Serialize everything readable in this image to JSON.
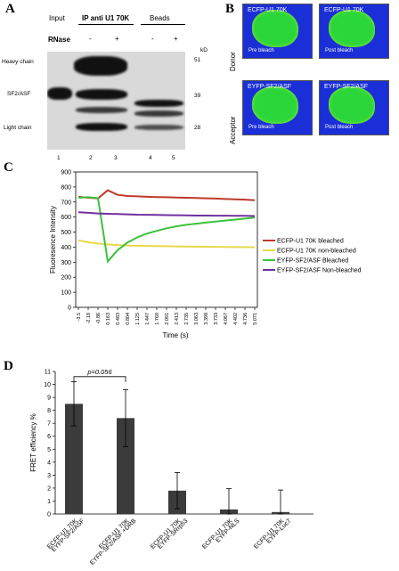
{
  "panelA": {
    "letter": "A",
    "col_input": "Input",
    "col_ip": "IP anti U1 70K",
    "col_beads": "Beads",
    "rnase_label": "RNase",
    "rnase_marks": [
      "-",
      "+",
      "-",
      "+"
    ],
    "kd_label": "kD",
    "markers": [
      "51",
      "39",
      "28"
    ],
    "row_labels": [
      "Heavy chain",
      "SF2/ASF",
      "Light chain"
    ],
    "lanes": [
      "1",
      "2",
      "3",
      "4",
      "5"
    ]
  },
  "panelB": {
    "letter": "B",
    "row_donor": "Donor",
    "row_acceptor": "Acceptor",
    "tiles": [
      {
        "title": "ECFP-U1 70K",
        "sub": "Pre bleach"
      },
      {
        "title": "ECFP-U1 70K",
        "sub": "Post bleach"
      },
      {
        "title": "EYFP-SF2/ASF",
        "sub": "Pre bleach"
      },
      {
        "title": "EYFP-SF2/ASF",
        "sub": "Post bleach"
      }
    ]
  },
  "panelC": {
    "letter": "C",
    "chart_data": {
      "type": "line",
      "xlabel": "Time (s)",
      "ylabel": "Fluoresence Intensity",
      "ylim": [
        0,
        900
      ],
      "yticks": [
        0,
        100,
        200,
        300,
        400,
        500,
        600,
        700,
        800,
        900
      ],
      "xtick_labels": [
        "-3.5",
        "-2.18",
        "-0.86",
        "0.163",
        "0.483",
        "0.804",
        "1.125",
        "1.447",
        "1.769",
        "2.091",
        "2.413",
        "2.735",
        "3.063",
        "3.398",
        "3.733",
        "4.067",
        "4.402",
        "4.736",
        "5.071"
      ],
      "series": [
        {
          "name": "ECFP-U1 70K bleached",
          "color": "#c0392b",
          "values": [
            735,
            728,
            724,
            778,
            748,
            740,
            738,
            735,
            733,
            732,
            730,
            728,
            727,
            725,
            723,
            720,
            718,
            716,
            712
          ]
        },
        {
          "name": "ECFP-U1 70K non-bleached",
          "color": "#e8d84a",
          "values": [
            445,
            432,
            424,
            418,
            414,
            411,
            409,
            408,
            407,
            406,
            405,
            404,
            403,
            402,
            402,
            401,
            400,
            400,
            399
          ]
        },
        {
          "name": "EYFP-SF2/ASF Bleached",
          "color": "#3cc23c",
          "values": [
            728,
            732,
            726,
            305,
            380,
            430,
            465,
            490,
            508,
            525,
            538,
            548,
            556,
            563,
            570,
            577,
            583,
            590,
            596
          ]
        },
        {
          "name": "EYFP-SF2/ASF Non-bleached",
          "color": "#7030a0",
          "values": [
            632,
            628,
            624,
            622,
            620,
            618,
            616,
            615,
            614,
            613,
            612,
            611,
            610,
            610,
            609,
            609,
            608,
            608,
            607
          ]
        }
      ],
      "legend": "right"
    }
  },
  "panelD": {
    "letter": "D",
    "pvalue": "p=0.056",
    "chart_data": {
      "type": "bar",
      "ylabel": "FRET efficiency %",
      "ylim": [
        0,
        11
      ],
      "yticks": [
        0,
        1,
        2,
        3,
        4,
        5,
        6,
        7,
        8,
        9,
        10,
        11
      ],
      "categories": [
        [
          "ECFP-U1 70K",
          "EYFP-SF2/ASF"
        ],
        [
          "ECFP-U1 70K",
          "EYFP-SF2/ASF +DRB"
        ],
        [
          "ECFP-U1 70K",
          "EYFP-SRrp53"
        ],
        [
          "ECFP-U1 70K",
          "EYFP-NLS"
        ],
        [
          "ECFP-U1 70K",
          "EYFP-Luc7"
        ]
      ],
      "values": [
        8.5,
        7.4,
        1.8,
        0.35,
        0.15
      ],
      "errors": [
        1.7,
        2.2,
        1.4,
        1.6,
        1.7
      ],
      "bar_color": "#3b3b3b"
    }
  }
}
